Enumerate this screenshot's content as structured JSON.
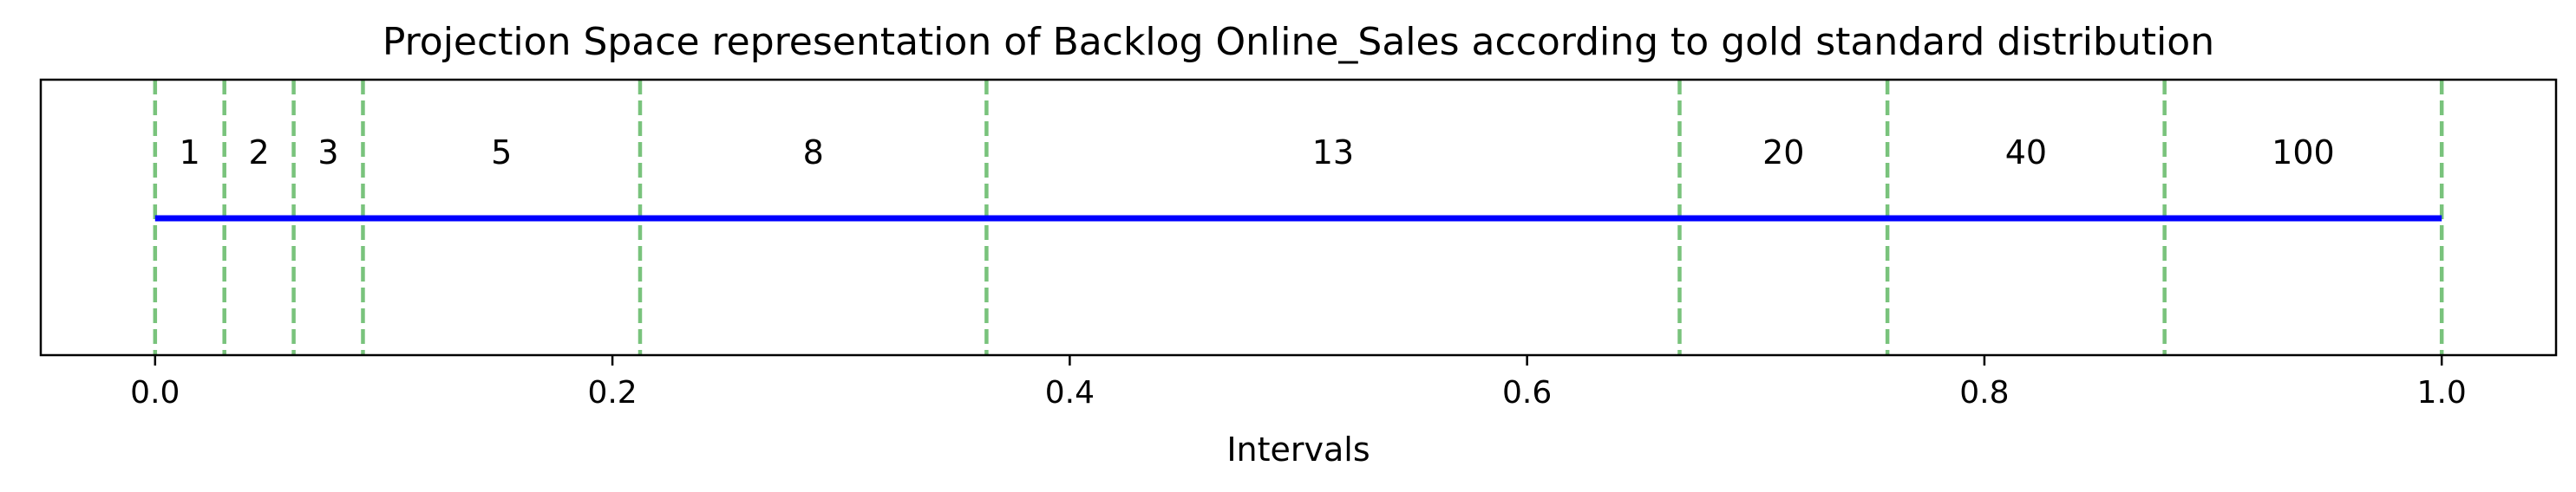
{
  "chart_data": {
    "type": "line",
    "title": "Projection Space representation of Backlog Online_Sales according to gold standard distribution",
    "xlabel": "Intervals",
    "ylabel": "",
    "xlim": [
      -0.05,
      1.05
    ],
    "x_ticks": [
      0.0,
      0.2,
      0.4,
      0.6,
      0.8,
      1.0
    ],
    "x_tick_labels": [
      "0.0",
      "0.2",
      "0.4",
      "0.6",
      "0.8",
      "1.0"
    ],
    "grid": false,
    "boundaries": [
      0.0,
      0.0303,
      0.0606,
      0.0909,
      0.2121,
      0.3636,
      0.6667,
      0.7576,
      0.8788,
      1.0
    ],
    "segments": [
      {
        "label": "1",
        "start": 0.0,
        "end": 0.0303
      },
      {
        "label": "2",
        "start": 0.0303,
        "end": 0.0606
      },
      {
        "label": "3",
        "start": 0.0606,
        "end": 0.0909
      },
      {
        "label": "5",
        "start": 0.0909,
        "end": 0.2121
      },
      {
        "label": "8",
        "start": 0.2121,
        "end": 0.3636
      },
      {
        "label": "13",
        "start": 0.3636,
        "end": 0.6667
      },
      {
        "label": "20",
        "start": 0.6667,
        "end": 0.7576
      },
      {
        "label": "40",
        "start": 0.7576,
        "end": 0.8788
      },
      {
        "label": "100",
        "start": 0.8788,
        "end": 1.0
      }
    ],
    "series": [
      {
        "x": [
          0.0,
          1.0
        ],
        "color": "#0000ff"
      }
    ],
    "boundary_color": "#4caf50",
    "boundary_style": "dashed"
  }
}
